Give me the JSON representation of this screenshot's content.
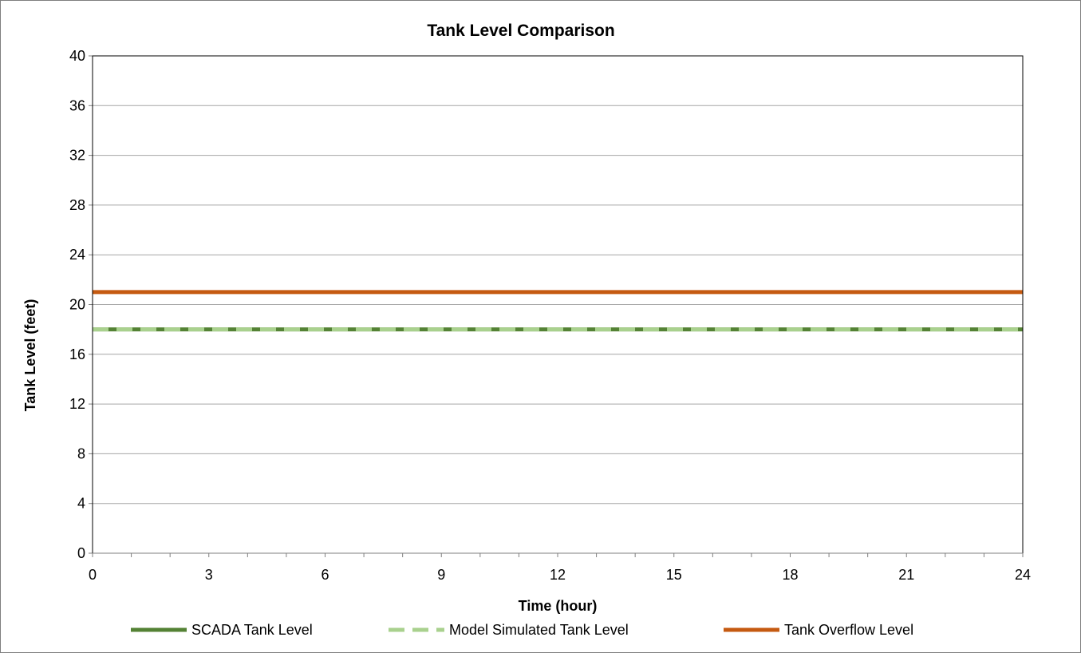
{
  "chart_data": {
    "type": "line",
    "title": "Tank Level Comparison",
    "xlabel": "Time (hour)",
    "ylabel": "Tank Level (feet)",
    "xlim": [
      0,
      24
    ],
    "ylim": [
      0,
      40
    ],
    "x_ticks": [
      0,
      3,
      6,
      9,
      12,
      15,
      18,
      21,
      24
    ],
    "x_minor_tick_step": 1,
    "y_ticks": [
      0,
      4,
      8,
      12,
      16,
      20,
      24,
      28,
      32,
      36,
      40
    ],
    "grid": "horizontal",
    "legend_position": "bottom",
    "series": [
      {
        "name": "SCADA Tank Level",
        "color": "#548235",
        "style": "solid",
        "x": [
          0,
          24
        ],
        "y": [
          18,
          18
        ]
      },
      {
        "name": "Model Simulated Tank Level",
        "color": "#a9d18e",
        "style": "dashed",
        "x": [
          0,
          24
        ],
        "y": [
          18,
          18
        ]
      },
      {
        "name": "Tank Overflow Level",
        "color": "#c55a11",
        "style": "solid",
        "x": [
          0,
          24
        ],
        "y": [
          21,
          21
        ]
      }
    ]
  }
}
